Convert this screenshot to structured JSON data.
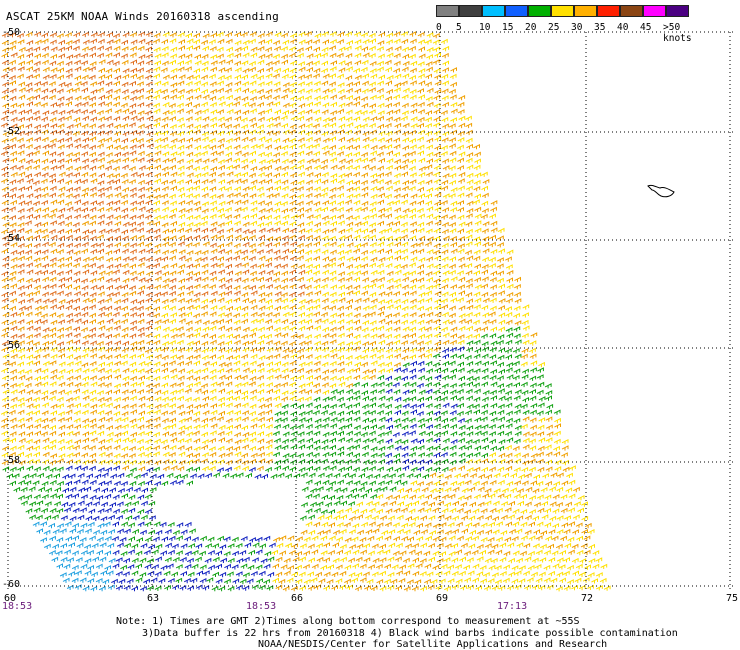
{
  "title": "ASCAT 25KM NOAA Winds 20160318 ascending",
  "legend": {
    "labels": [
      "0",
      "5",
      "10",
      "15",
      "20",
      "25",
      "30",
      "35",
      "40",
      "45",
      ">50 knots"
    ],
    "colors": [
      "#808080",
      "#404040",
      "#00bfff",
      "#1060ff",
      "#00b000",
      "#ffe000",
      "#ffb000",
      "#ff2000",
      "#8b4513",
      "#ff00ff",
      "#4b0082"
    ]
  },
  "axes": {
    "lon_ticks": [
      "60",
      "63",
      "66",
      "69",
      "72",
      "75"
    ],
    "lat_ticks": [
      "-50",
      "-52",
      "-54",
      "-56",
      "-58",
      "-60"
    ]
  },
  "times": {
    "left": "18:53",
    "middle": "18:53",
    "right": "17:13"
  },
  "notes": {
    "line1": "Note: 1) Times are GMT 2)Times along bottom correspond to measurement at ~55S",
    "line2": "3)Data buffer is 22 hrs from 20160318 4) Black wind barbs indicate possible contamination",
    "line3": "NOAA/NESDIS/Center for Satellite Applications and Research"
  },
  "swath_colors": {
    "strong": "#e07020",
    "moderate": "#f0a000",
    "light": "#ffe000",
    "green": "#10a010",
    "blue": "#1020c0",
    "cyan": "#20a0e0"
  }
}
